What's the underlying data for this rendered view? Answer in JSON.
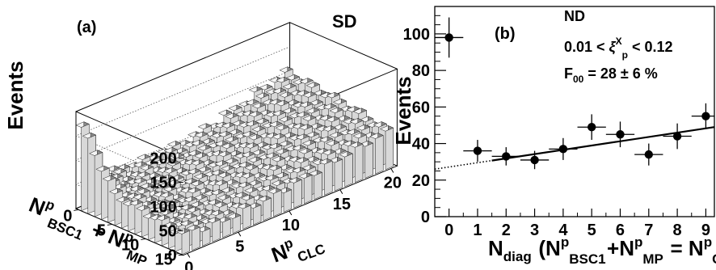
{
  "chart_data": [
    {
      "panel": "(a)",
      "type": "bar",
      "style": "3d-lego",
      "corner_label": "SD",
      "ylabel": "Events",
      "zlim": [
        0,
        200
      ],
      "z_ticks": [
        "0",
        "50",
        "100",
        "150",
        "200"
      ],
      "x_axis_label": {
        "main": "N",
        "sup": "p",
        "sub": "CLC"
      },
      "x_ticks": [
        "0",
        "5",
        "10",
        "15",
        "20"
      ],
      "y_axis_label": {
        "parts": [
          {
            "main": "N",
            "sup": "p",
            "sub": "BSC1"
          },
          {
            "text": " + "
          },
          {
            "main": "N",
            "sup": "p",
            "sub": "MP"
          }
        ]
      },
      "y_ticks": [
        "0",
        "5",
        "10",
        "15"
      ],
      "note": "2D histogram of SD events vs N^p_CLC and N^p_BSC1+N^p_MP",
      "sample_rows": [
        {
          "y": 0,
          "values": [
            172,
            70,
            56,
            52,
            48,
            50,
            47,
            45,
            50,
            48,
            52,
            55,
            60,
            62,
            70,
            75,
            80,
            90,
            95,
            100,
            105
          ]
        },
        {
          "y": 5,
          "values": [
            60,
            55,
            50,
            48,
            45,
            44,
            42,
            45,
            48,
            50,
            55,
            58,
            60,
            65,
            70,
            75,
            80,
            85,
            88,
            92,
            98
          ]
        },
        {
          "y": 10,
          "values": [
            50,
            45,
            42,
            40,
            38,
            40,
            42,
            45,
            48,
            50,
            52,
            56,
            60,
            62,
            66,
            70,
            74,
            78,
            80,
            84,
            88
          ]
        },
        {
          "y": 15,
          "values": [
            40,
            38,
            35,
            34,
            32,
            34,
            36,
            38,
            40,
            42,
            45,
            48,
            50,
            54,
            58,
            60,
            64,
            66,
            70,
            72,
            75
          ]
        }
      ]
    },
    {
      "panel": "(b)",
      "type": "scatter",
      "corner_label": "ND",
      "ylabel": "Events",
      "xlabel": {
        "main": "N",
        "sub": "diag",
        "rest": [
          {
            "text": " ("
          },
          {
            "main": "N",
            "sup": "p",
            "sub": "BSC1"
          },
          {
            "text": "+"
          },
          {
            "main": "N",
            "sup": "p",
            "sub": "MP"
          },
          {
            "text": " = "
          },
          {
            "main": "N",
            "sup": "p",
            "sub": "CLC"
          },
          {
            "text": ")"
          }
        ]
      },
      "annotations": {
        "xi_range": {
          "lo": "0.01 < ",
          "sym": "ξ",
          "sup": "X",
          "sub": "p",
          "hi": " < 0.12"
        },
        "f00": {
          "prefix": "F",
          "sub": "00",
          "value": " = 28 ± 6 %"
        }
      },
      "xlim": [
        -0.5,
        9.3
      ],
      "ylim": [
        0,
        115
      ],
      "x_ticks": [
        0,
        1,
        2,
        3,
        4,
        5,
        6,
        7,
        8,
        9
      ],
      "y_ticks": [
        0,
        20,
        40,
        60,
        80,
        100
      ],
      "points": [
        {
          "x": 0,
          "y": 98,
          "err": 11
        },
        {
          "x": 1,
          "y": 36,
          "err": 6
        },
        {
          "x": 2,
          "y": 33,
          "err": 5
        },
        {
          "x": 3,
          "y": 31,
          "err": 5
        },
        {
          "x": 4,
          "y": 37,
          "err": 6
        },
        {
          "x": 5,
          "y": 49,
          "err": 7
        },
        {
          "x": 6,
          "y": 45,
          "err": 7
        },
        {
          "x": 7,
          "y": 34,
          "err": 6
        },
        {
          "x": 8,
          "y": 44,
          "err": 7
        },
        {
          "x": 9,
          "y": 55,
          "err": 7
        }
      ],
      "fit_line": {
        "x0": -0.5,
        "x1": 9.3,
        "y0": 26,
        "y1": 49,
        "solid_from": 1.5
      }
    }
  ]
}
